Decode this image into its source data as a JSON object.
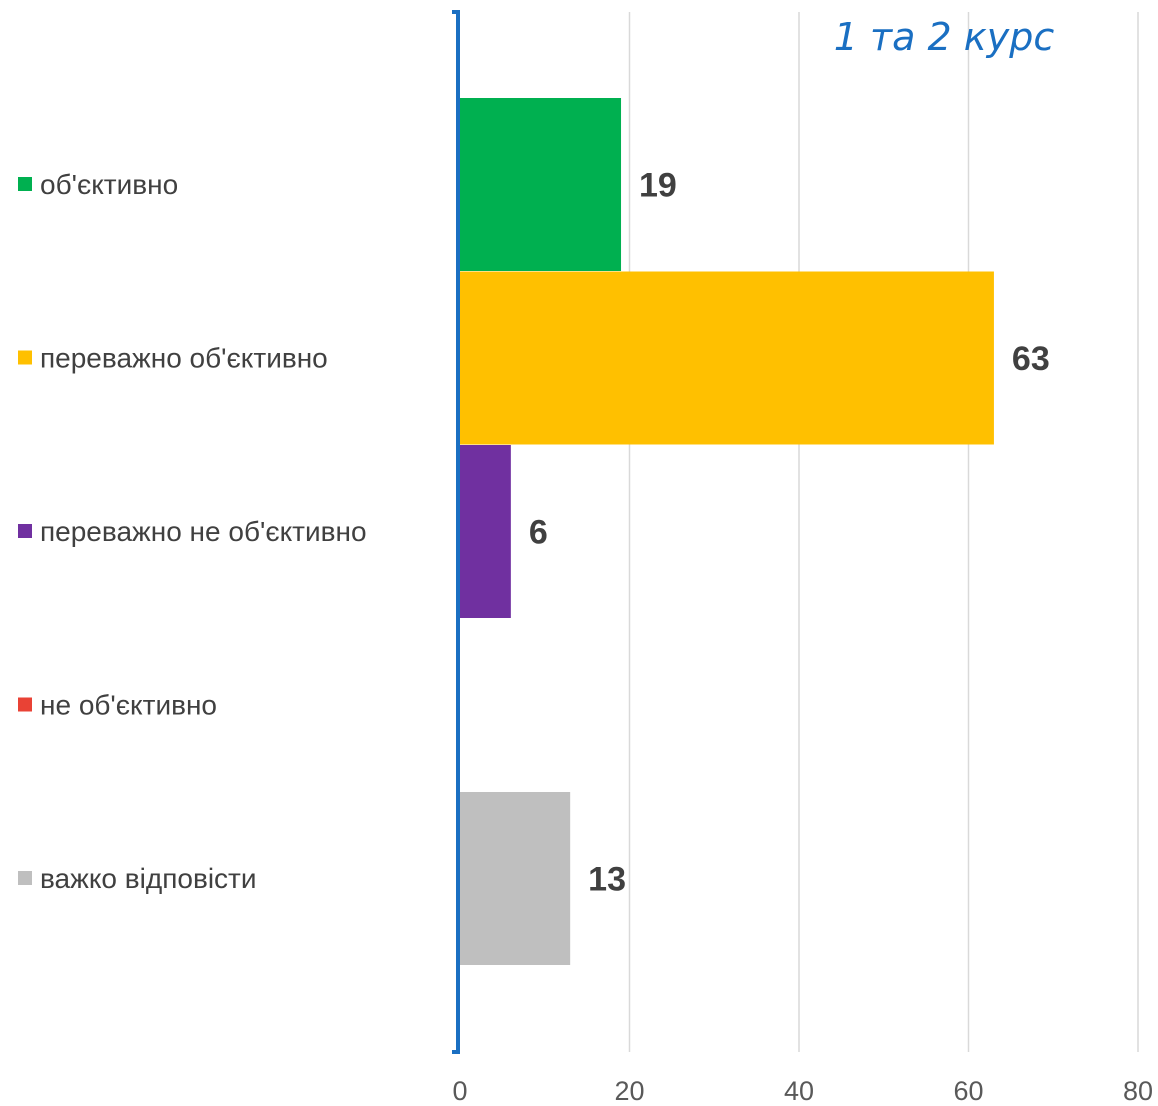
{
  "chart_data": {
    "type": "bar",
    "orientation": "horizontal",
    "title": "1 та 2 курс",
    "xlabel": "",
    "ylabel": "",
    "xlim": [
      0,
      80
    ],
    "x_ticks": [
      "0",
      "20",
      "40",
      "60",
      "80"
    ],
    "grid": true,
    "legend_placement": "left",
    "series": [
      {
        "name": "об'єктивно",
        "value": 19,
        "label": "19",
        "color": "#00b050"
      },
      {
        "name": "переважно об'єктивно",
        "value": 63,
        "label": "63",
        "color": "#ffc000"
      },
      {
        "name": "переважно не об'єктивно",
        "value": 6,
        "label": "6",
        "color": "#7030a0"
      },
      {
        "name": "не об'єктивно",
        "value": 0,
        "label": "",
        "color": "#e94235"
      },
      {
        "name": "важко відповісти",
        "value": 13,
        "label": "13",
        "color": "#bfbfbf"
      }
    ],
    "colors": {
      "axis": "#1a6fc2",
      "grid": "#d9d9d9"
    }
  }
}
